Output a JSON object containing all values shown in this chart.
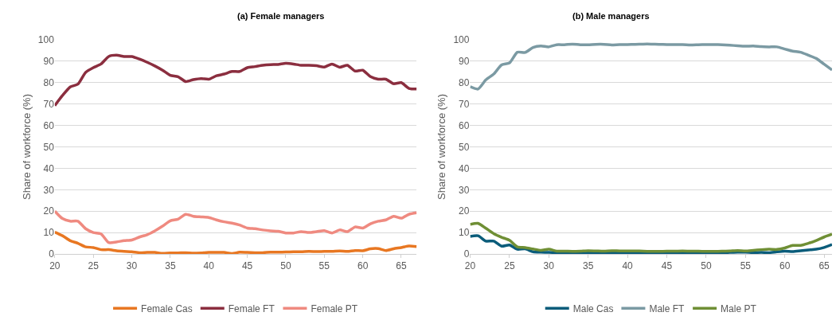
{
  "chart_data": [
    {
      "type": "line",
      "title": "(a) Female managers",
      "ylabel": "Share of workforce (%)",
      "x": [
        20,
        21,
        22,
        23,
        24,
        25,
        26,
        27,
        28,
        29,
        30,
        31,
        32,
        33,
        34,
        35,
        36,
        37,
        38,
        39,
        40,
        41,
        42,
        43,
        44,
        45,
        46,
        47,
        48,
        49,
        50,
        51,
        52,
        53,
        54,
        55,
        56,
        57,
        58,
        59,
        60,
        61,
        62,
        63,
        64,
        65,
        66,
        67
      ],
      "xlim": [
        20,
        67
      ],
      "xticks": [
        20,
        25,
        30,
        35,
        40,
        45,
        50,
        55,
        60,
        65
      ],
      "ylim": [
        0,
        100
      ],
      "yticks": [
        0,
        10,
        20,
        30,
        40,
        50,
        60,
        70,
        80,
        90,
        100
      ],
      "grid": "y",
      "legend": "bottom",
      "marker": "none",
      "line_style": "solid",
      "series": [
        {
          "name": "Female Cas",
          "color": "#e87722",
          "values": [
            10.2,
            8.5,
            6.2,
            5,
            3.3,
            3,
            2,
            2,
            1.5,
            1.2,
            1,
            0.6,
            0.7,
            0.7,
            0.3,
            0.5,
            0.5,
            0.6,
            0.4,
            0.5,
            0.7,
            0.7,
            0.7,
            0.2,
            0.8,
            0.7,
            0.6,
            0.6,
            0.8,
            0.8,
            0.9,
            1,
            1,
            1.2,
            1.1,
            1.2,
            1.2,
            1.4,
            1.2,
            1.6,
            1.5,
            2.4,
            2.5,
            1.6,
            2.4,
            3,
            3.7,
            3.4
          ]
        },
        {
          "name": "Female FT",
          "color": "#8b2e3f",
          "values": [
            69.3,
            74,
            78,
            79.3,
            84.8,
            87,
            88.7,
            92.2,
            92.8,
            92.2,
            92.2,
            91,
            89.5,
            87.8,
            85.8,
            83.4,
            82.8,
            80.5,
            81.4,
            81.9,
            81.6,
            83.2,
            84,
            85.2,
            85.2,
            87,
            87.5,
            88.1,
            88.4,
            88.5,
            89,
            88.7,
            88.1,
            88.1,
            87.9,
            87.3,
            88.7,
            87.2,
            88.1,
            85.4,
            85.8,
            82.8,
            81.6,
            81.6,
            79.5,
            80,
            77.3,
            77
          ]
        },
        {
          "name": "Female PT",
          "color": "#ef8a80",
          "values": [
            20,
            16.5,
            15.3,
            15.3,
            11.8,
            10,
            9.4,
            5.3,
            5.6,
            6.2,
            6.5,
            7.9,
            9,
            10.8,
            13,
            15.5,
            16.2,
            18.5,
            17.6,
            17.3,
            17,
            15.9,
            15,
            14.4,
            13.5,
            12.1,
            11.8,
            11.2,
            10.8,
            10.6,
            9.8,
            9.8,
            10.4,
            10,
            10.4,
            10.9,
            9.8,
            11.2,
            10.4,
            12.6,
            12.1,
            14.1,
            15.3,
            15.9,
            17.6,
            16.7,
            18.5,
            19.2
          ]
        }
      ]
    },
    {
      "type": "line",
      "title": "(b) Male managers",
      "ylabel": "Share of workforce (%)",
      "x": [
        20,
        21,
        22,
        23,
        24,
        25,
        26,
        27,
        28,
        29,
        30,
        31,
        32,
        33,
        34,
        35,
        36,
        37,
        38,
        39,
        40,
        41,
        42,
        43,
        44,
        45,
        46,
        47,
        48,
        49,
        50,
        51,
        52,
        53,
        54,
        55,
        56,
        57,
        58,
        59,
        60,
        61,
        62,
        63,
        64,
        65,
        66
      ],
      "xlim": [
        20,
        66
      ],
      "xticks": [
        20,
        25,
        30,
        35,
        40,
        45,
        50,
        55,
        60,
        65
      ],
      "ylim": [
        0,
        100
      ],
      "yticks": [
        0,
        10,
        20,
        30,
        40,
        50,
        60,
        70,
        80,
        90,
        100
      ],
      "grid": "y",
      "legend": "bottom",
      "marker": "none",
      "line_style": "solid",
      "series": [
        {
          "name": "Male Cas",
          "color": "#0a5c7a",
          "values": [
            8.2,
            8.5,
            6,
            6,
            3.6,
            4.2,
            2.2,
            2.4,
            1,
            0.8,
            0.7,
            0.6,
            0.5,
            0.5,
            0.5,
            0.5,
            0.5,
            0.5,
            0.5,
            0.4,
            0.4,
            0.3,
            0.4,
            0.4,
            0.4,
            0.4,
            0.4,
            0.5,
            0.5,
            0.5,
            0.5,
            0.5,
            0.5,
            0.7,
            0.8,
            0.8,
            0.6,
            0.7,
            0.6,
            1,
            1.3,
            1.1,
            1.5,
            1.9,
            2.2,
            3,
            4.4
          ]
        },
        {
          "name": "Male FT",
          "color": "#7b9aa3",
          "values": [
            78.1,
            77,
            81.3,
            84,
            88.3,
            89.2,
            94.2,
            94.1,
            96.4,
            97.1,
            96.7,
            97.7,
            97.7,
            98,
            97.7,
            97.7,
            97.9,
            97.9,
            97.6,
            97.8,
            97.8,
            97.9,
            98,
            98,
            97.9,
            97.8,
            97.8,
            97.8,
            97.6,
            97.7,
            97.8,
            97.8,
            97.7,
            97.5,
            97.2,
            97,
            97.1,
            96.8,
            96.7,
            96.7,
            95.7,
            94.7,
            94.2,
            92.8,
            91.3,
            88.6,
            85.9
          ]
        },
        {
          "name": "Male PT",
          "color": "#6f8f35",
          "values": [
            13.8,
            14.3,
            12,
            9.5,
            7.8,
            6.4,
            3.3,
            3,
            2.3,
            1.7,
            2.2,
            1.3,
            1.3,
            1.2,
            1.3,
            1.5,
            1.4,
            1.3,
            1.5,
            1.4,
            1.4,
            1.4,
            1.3,
            1.2,
            1.2,
            1.3,
            1.3,
            1.4,
            1.3,
            1.3,
            1.2,
            1.2,
            1.3,
            1.4,
            1.6,
            1.4,
            1.7,
            2,
            2.2,
            2.1,
            2.8,
            4,
            4,
            5,
            6.3,
            7.9,
            9.2
          ]
        }
      ]
    }
  ]
}
